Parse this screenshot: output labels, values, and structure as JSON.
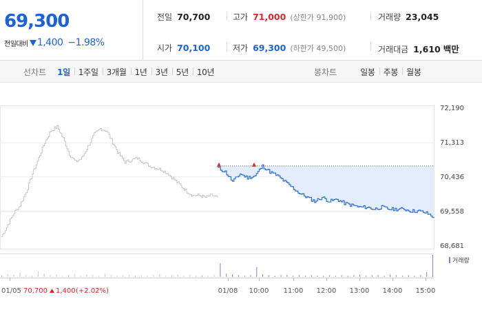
{
  "quote": {
    "price": "69,300",
    "change_label": "전일대비",
    "change_amount": "1,400",
    "change_percent": "−1.98%",
    "colors": {
      "down": "#1b63d8",
      "up": "#e0242b"
    }
  },
  "stats": {
    "prev_close": {
      "label": "전일",
      "value": "70,700"
    },
    "open": {
      "label": "시가",
      "value": "70,100"
    },
    "high": {
      "label": "고가",
      "value": "71,000",
      "limit": "(상한가 91,900)"
    },
    "low": {
      "label": "저가",
      "value": "69,300",
      "limit": "(하한가 49,500)"
    },
    "volume": {
      "label": "거래량",
      "value": "23,045"
    },
    "amount": {
      "label": "거래대금",
      "value": "1,610",
      "unit": "백만"
    }
  },
  "toolbar": {
    "line_label": "선차트",
    "line_periods": [
      "1일",
      "1주일",
      "3개월",
      "1년",
      "3년",
      "5년",
      "10년"
    ],
    "candle_label": "봉차트",
    "candle_periods": [
      "일봉",
      "주봉",
      "월봉"
    ]
  },
  "chart_data": {
    "type": "line",
    "y_ticks": [
      "72,190",
      "71,313",
      "70,436",
      "69,558",
      "68,681"
    ],
    "ylim": [
      68681,
      72190
    ],
    "x_labels": [
      "01/05",
      "01/08",
      "10:00",
      "11:00",
      "12:00",
      "13:00",
      "14:00",
      "15:00"
    ],
    "prev_day_info": {
      "date": "01/05",
      "close": "70,700",
      "change": "1,400",
      "percent": "(+2.02%)"
    },
    "volume_label": "거래량",
    "prev_close_ref": 70700,
    "series": [
      {
        "role": "previous-day",
        "color": "#c4c4c4",
        "values": [
          68900,
          69200,
          69500,
          69700,
          70050,
          70500,
          70900,
          71300,
          71600,
          71700,
          71400,
          71000,
          70800,
          70900,
          71200,
          71500,
          71650,
          71600,
          71300,
          71000,
          70800,
          70850,
          70900,
          70800,
          70700,
          70650,
          70600,
          70500,
          70350,
          70200,
          70050,
          69950,
          69950,
          69900,
          69950,
          69900
        ]
      },
      {
        "role": "today",
        "color": "#2a6fd6",
        "values": [
          70650,
          70550,
          70300,
          70500,
          70400,
          70450,
          70700,
          70550,
          70450,
          70300,
          70150,
          70000,
          69900,
          69800,
          69900,
          69800,
          69850,
          69750,
          69700,
          69650,
          69650,
          69600,
          69650,
          69600,
          69600,
          69600,
          69550,
          69550,
          69500,
          69400
        ]
      }
    ],
    "volume": [
      3,
      5,
      4,
      8,
      3,
      2,
      10,
      6,
      3,
      4,
      2,
      3,
      5,
      2,
      4,
      3,
      2,
      6,
      3,
      2,
      3,
      4,
      2,
      3,
      2,
      3,
      5,
      2,
      3,
      4,
      2,
      3,
      2,
      3,
      2,
      3,
      25,
      6,
      4,
      3,
      2,
      3,
      18,
      5,
      3,
      2,
      3,
      4,
      2,
      3,
      2,
      3,
      2,
      2,
      3,
      2,
      3,
      2,
      3,
      4,
      2,
      3,
      3,
      2,
      4,
      3,
      2,
      3,
      2,
      3,
      9,
      40
    ]
  }
}
